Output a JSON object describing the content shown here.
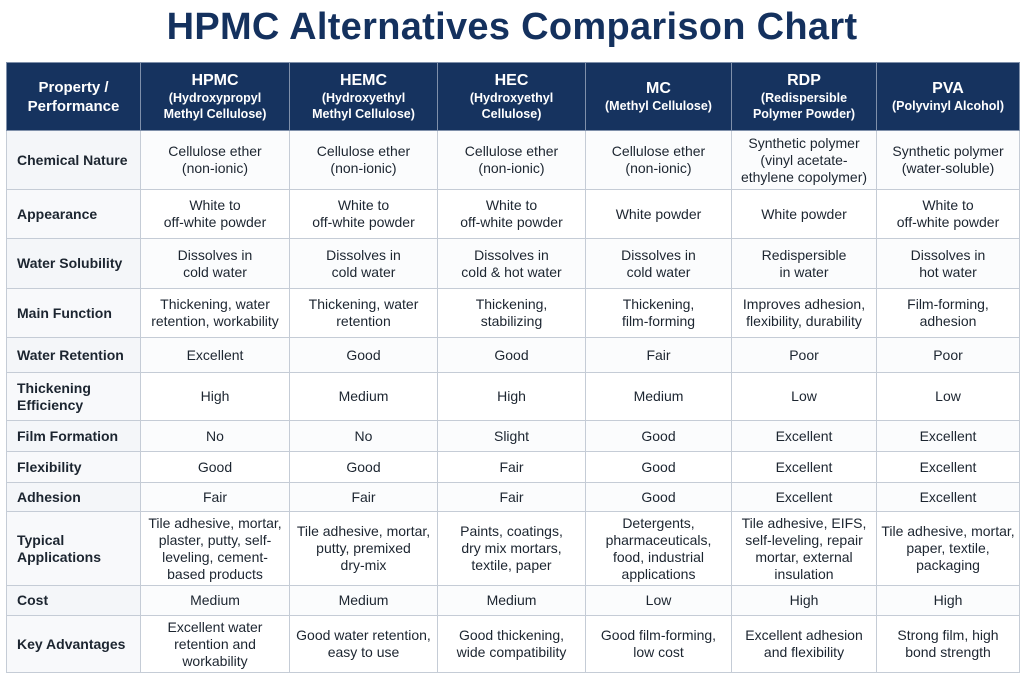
{
  "title": "HPMC Alternatives Comparison Chart",
  "header": {
    "property": "Property /\nPerformance",
    "columns": [
      {
        "name": "HPMC",
        "sub": "(Hydroxypropyl\nMethyl Cellulose)"
      },
      {
        "name": "HEMC",
        "sub": "(Hydroxyethyl\nMethyl Cellulose)"
      },
      {
        "name": "HEC",
        "sub": "(Hydroxyethyl\nCellulose)"
      },
      {
        "name": "MC",
        "sub": "(Methyl Cellulose)"
      },
      {
        "name": "RDP",
        "sub": "(Redispersible\nPolymer Powder)"
      },
      {
        "name": "PVA",
        "sub": "(Polyvinyl Alcohol)"
      }
    ]
  },
  "rows": [
    {
      "property": "Chemical Nature",
      "values": [
        "Cellulose ether\n(non-ionic)",
        "Cellulose ether\n(non-ionic)",
        "Cellulose ether\n(non-ionic)",
        "Cellulose ether\n(non-ionic)",
        "Synthetic polymer\n(vinyl acetate-\nethylene copolymer)",
        "Synthetic polymer\n(water-soluble)"
      ]
    },
    {
      "property": "Appearance",
      "values": [
        "White to\noff-white powder",
        "White to\noff-white powder",
        "White to\noff-white powder",
        "White powder",
        "White powder",
        "White to\noff-white powder"
      ]
    },
    {
      "property": "Water Solubility",
      "values": [
        "Dissolves in\ncold water",
        "Dissolves in\ncold water",
        "Dissolves in\ncold & hot water",
        "Dissolves in\ncold water",
        "Redispersible\nin water",
        "Dissolves in\nhot water"
      ]
    },
    {
      "property": "Main Function",
      "values": [
        "Thickening, water\nretention, workability",
        "Thickening, water\nretention",
        "Thickening,\nstabilizing",
        "Thickening,\nfilm-forming",
        "Improves adhesion,\nflexibility, durability",
        "Film-forming,\nadhesion"
      ]
    },
    {
      "property": "Water Retention",
      "values": [
        "Excellent",
        "Good",
        "Good",
        "Fair",
        "Poor",
        "Poor"
      ]
    },
    {
      "property": "Thickening\nEfficiency",
      "values": [
        "High",
        "Medium",
        "High",
        "Medium",
        "Low",
        "Low"
      ]
    },
    {
      "property": "Film Formation",
      "values": [
        "No",
        "No",
        "Slight",
        "Good",
        "Excellent",
        "Excellent"
      ]
    },
    {
      "property": "Flexibility",
      "values": [
        "Good",
        "Good",
        "Fair",
        "Good",
        "Excellent",
        "Excellent"
      ]
    },
    {
      "property": "Adhesion",
      "values": [
        "Fair",
        "Fair",
        "Fair",
        "Good",
        "Excellent",
        "Excellent"
      ]
    },
    {
      "property": "Typical Applications",
      "values": [
        "Tile adhesive, mortar,\nplaster, putty, self-\nleveling, cement-\nbased products",
        "Tile adhesive, mortar,\nputty, premixed\ndry-mix",
        "Paints, coatings,\ndry mix mortars,\ntextile, paper",
        "Detergents,\npharmaceuticals,\nfood, industrial\napplications",
        "Tile adhesive, EIFS,\nself-leveling, repair\nmortar, external\ninsulation",
        "Tile adhesive, mortar,\npaper, textile,\npackaging"
      ]
    },
    {
      "property": "Cost",
      "values": [
        "Medium",
        "Medium",
        "Medium",
        "Low",
        "High",
        "High"
      ]
    },
    {
      "property": "Key Advantages",
      "values": [
        "Excellent water\nretention and\nworkability",
        "Good water retention,\neasy to use",
        "Good thickening,\nwide compatibility",
        "Good film-forming,\nlow cost",
        "Excellent adhesion\nand flexibility",
        "Strong film, high\nbond strength"
      ]
    }
  ]
}
